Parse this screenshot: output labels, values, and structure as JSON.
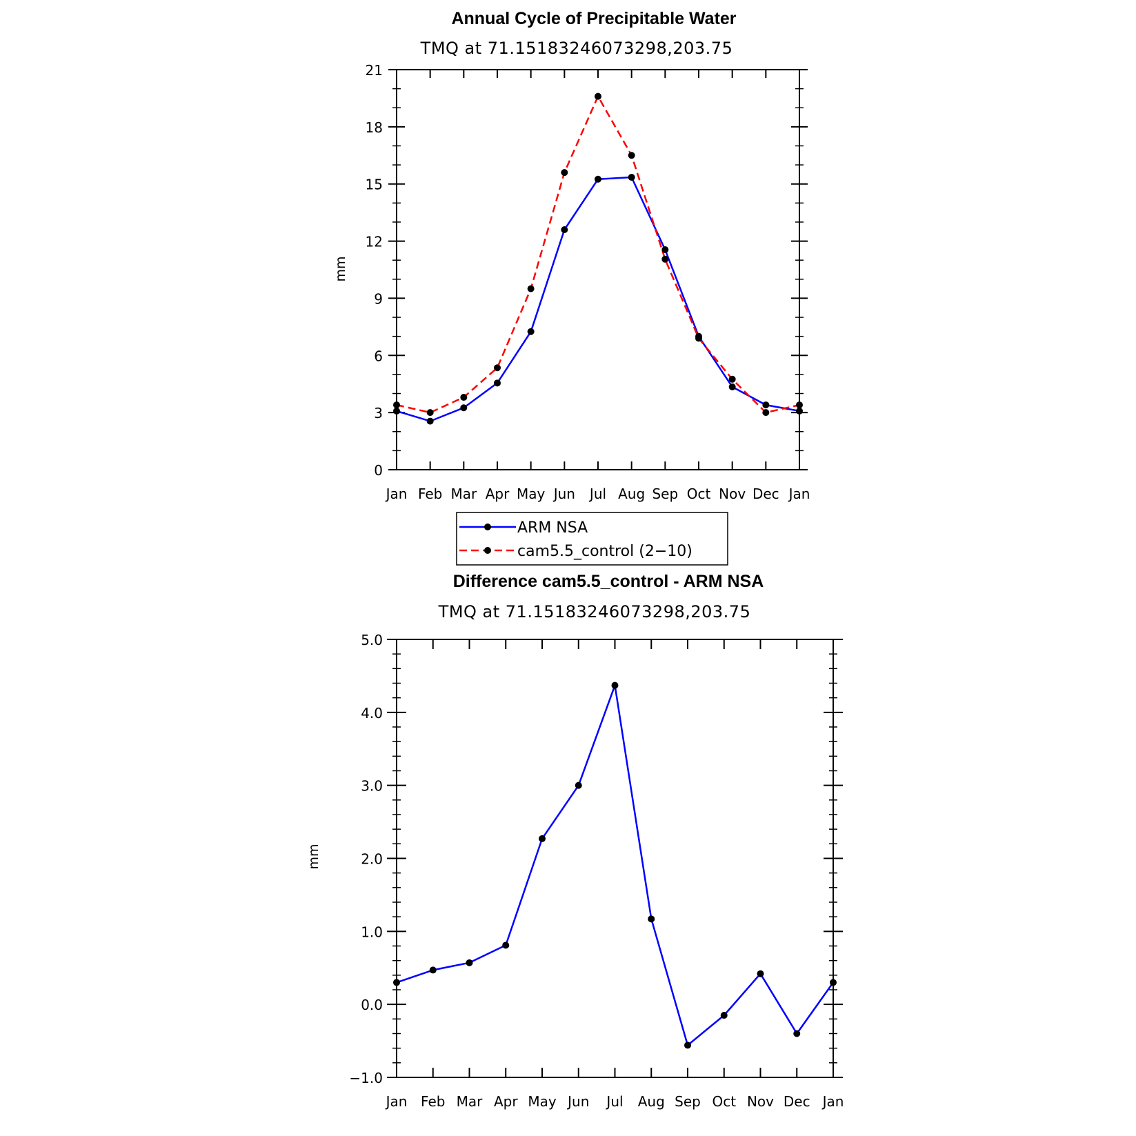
{
  "colors": {
    "obs": "#0000ff",
    "model": "#ff0000",
    "marker": "#000000",
    "axis": "#000000"
  },
  "chart_data": [
    {
      "type": "line",
      "title": "Annual Cycle of Precipitable Water",
      "subtitle": "TMQ  at  71.15183246073298,203.75",
      "xlabel": "",
      "ylabel": "mm",
      "categories": [
        "Jan",
        "Feb",
        "Mar",
        "Apr",
        "May",
        "Jun",
        "Jul",
        "Aug",
        "Sep",
        "Oct",
        "Nov",
        "Dec",
        "Jan"
      ],
      "ylim": [
        0,
        21
      ],
      "yticks": [
        "0",
        "3",
        "6",
        "9",
        "12",
        "15",
        "18",
        "21"
      ],
      "series": [
        {
          "name": "ARM NSA",
          "style": "solid",
          "color": "#0000ff",
          "values": [
            3.08,
            2.55,
            3.25,
            4.55,
            7.25,
            12.6,
            15.25,
            15.35,
            11.55,
            7.0,
            4.35,
            3.4,
            3.08
          ]
        },
        {
          "name": "cam5.5_control (2−10)",
          "style": "dashed",
          "color": "#ff0000",
          "values": [
            3.4,
            3.0,
            3.8,
            5.35,
            9.5,
            15.6,
            19.6,
            16.5,
            11.05,
            6.9,
            4.75,
            3.0,
            3.4
          ]
        }
      ],
      "legend_position": "bottom"
    },
    {
      "type": "line",
      "title": "Difference cam5.5_control - ARM NSA",
      "subtitle": "TMQ  at  71.15183246073298,203.75",
      "xlabel": "",
      "ylabel": "mm",
      "categories": [
        "Jan",
        "Feb",
        "Mar",
        "Apr",
        "May",
        "Jun",
        "Jul",
        "Aug",
        "Sep",
        "Oct",
        "Nov",
        "Dec",
        "Jan"
      ],
      "ylim": [
        -1.0,
        5.0
      ],
      "yticks": [
        "−1.0",
        "0.0",
        "1.0",
        "2.0",
        "3.0",
        "4.0",
        "5.0"
      ],
      "series": [
        {
          "name": "",
          "style": "solid",
          "color": "#0000ff",
          "values": [
            0.3,
            0.47,
            0.57,
            0.81,
            2.27,
            3.0,
            4.37,
            1.17,
            -0.56,
            -0.15,
            0.42,
            -0.4,
            0.3
          ]
        }
      ]
    }
  ]
}
